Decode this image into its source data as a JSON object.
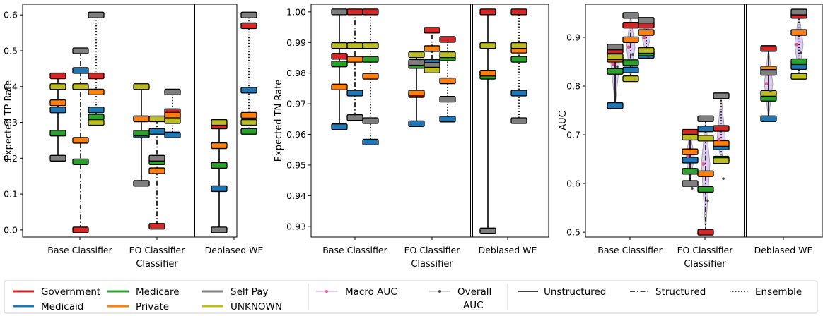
{
  "chart_data": [
    {
      "type": "box-marker",
      "ylabel": "Expected TP Rate",
      "xlabel": "Classifier",
      "yticks": [
        "0.0",
        "0.1",
        "0.2",
        "0.3",
        "0.4",
        "0.5",
        "0.6"
      ],
      "ylim": [
        -0.02,
        0.63
      ],
      "categories": [
        "Base Classifier",
        "EO Classifier",
        "Debiased WE"
      ],
      "groups": [
        {
          "name": "Government",
          "color": "#d62728",
          "values": {
            "Base Classifier": {
              "Unstructured": 0.43,
              "Structured": 0.0,
              "Ensemble": 0.43
            },
            "EO Classifier": {
              "Unstructured": 0.31,
              "Structured": 0.01,
              "Ensemble": 0.33
            },
            "Debiased WE": {
              "Unstructured": 0.29,
              "Ensemble": 0.57
            }
          }
        },
        {
          "name": "Medicaid",
          "color": "#1f77b4",
          "values": {
            "Base Classifier": {
              "Unstructured": 0.335,
              "Structured": 0.445,
              "Ensemble": 0.335
            },
            "EO Classifier": {
              "Unstructured": 0.265,
              "Structured": 0.275,
              "Ensemble": 0.265
            },
            "Debiased WE": {
              "Unstructured": 0.115,
              "Ensemble": 0.39
            }
          }
        },
        {
          "name": "Medicare",
          "color": "#2ca02c",
          "values": {
            "Base Classifier": {
              "Unstructured": 0.27,
              "Structured": 0.19,
              "Ensemble": 0.315
            },
            "EO Classifier": {
              "Unstructured": 0.27,
              "Structured": 0.19,
              "Ensemble": 0.315
            },
            "Debiased WE": {
              "Unstructured": 0.18,
              "Ensemble": 0.275
            }
          }
        },
        {
          "name": "Private",
          "color": "#ff7f0e",
          "values": {
            "Base Classifier": {
              "Unstructured": 0.355,
              "Structured": 0.25,
              "Ensemble": 0.385
            },
            "EO Classifier": {
              "Unstructured": 0.31,
              "Structured": 0.165,
              "Ensemble": 0.32
            },
            "Debiased WE": {
              "Unstructured": 0.235,
              "Ensemble": 0.32
            }
          }
        },
        {
          "name": "Self Pay",
          "color": "#7f7f7f",
          "values": {
            "Base Classifier": {
              "Unstructured": 0.2,
              "Structured": 0.5,
              "Ensemble": 0.6
            },
            "EO Classifier": {
              "Unstructured": 0.13,
              "Structured": 0.2,
              "Ensemble": 0.385
            },
            "Debiased WE": {
              "Unstructured": 0.0,
              "Ensemble": 0.6
            }
          }
        },
        {
          "name": "UNKNOWN",
          "color": "#bcbd22",
          "values": {
            "Base Classifier": {
              "Unstructured": 0.4,
              "Structured": 0.4,
              "Ensemble": 0.3
            },
            "EO Classifier": {
              "Unstructured": 0.4,
              "Structured": 0.31,
              "Ensemble": 0.305
            },
            "Debiased WE": {
              "Unstructured": 0.3,
              "Ensemble": 0.3
            }
          }
        }
      ]
    },
    {
      "type": "box-marker",
      "ylabel": "Expected TN Rate",
      "xlabel": "Classifier",
      "yticks": [
        "0.93",
        "0.94",
        "0.95",
        "0.96",
        "0.97",
        "0.98",
        "0.99",
        "1.00"
      ],
      "ylim": [
        0.9265,
        1.0025
      ],
      "categories": [
        "Base Classifier",
        "EO Classifier",
        "Debiased WE"
      ],
      "groups": [
        {
          "name": "Government",
          "color": "#d62728",
          "values": {
            "Base Classifier": {
              "Unstructured": 0.9855,
              "Structured": 1.0,
              "Ensemble": 1.0
            },
            "EO Classifier": {
              "Unstructured": 0.973,
              "Structured": 0.994,
              "Ensemble": 0.991
            },
            "Debiased WE": {
              "Unstructured": 1.0,
              "Ensemble": 1.0
            }
          }
        },
        {
          "name": "Medicaid",
          "color": "#1f77b4",
          "values": {
            "Base Classifier": {
              "Unstructured": 0.9625,
              "Structured": 0.9735,
              "Ensemble": 0.9575
            },
            "EO Classifier": {
              "Unstructured": 0.9635,
              "Structured": 0.9835,
              "Ensemble": 0.965
            },
            "Debiased WE": {
              "Unstructured": 0.98,
              "Ensemble": 0.9735
            }
          }
        },
        {
          "name": "Medicare",
          "color": "#2ca02c",
          "values": {
            "Base Classifier": {
              "Unstructured": 0.983,
              "Structured": 0.989,
              "Ensemble": 0.9845
            },
            "EO Classifier": {
              "Unstructured": 0.9825,
              "Structured": 0.9825,
              "Ensemble": 0.985
            },
            "Debiased WE": {
              "Unstructured": 0.979,
              "Ensemble": 0.9845
            }
          }
        },
        {
          "name": "Private",
          "color": "#ff7f0e",
          "values": {
            "Base Classifier": {
              "Unstructured": 0.9755,
              "Structured": 0.9845,
              "Ensemble": 0.979
            },
            "EO Classifier": {
              "Unstructured": 0.9735,
              "Structured": 0.988,
              "Ensemble": 0.9775
            },
            "Debiased WE": {
              "Unstructured": 0.98,
              "Ensemble": 0.9875
            }
          }
        },
        {
          "name": "Self Pay",
          "color": "#7f7f7f",
          "values": {
            "Base Classifier": {
              "Unstructured": 1.0,
              "Structured": 0.9655,
              "Ensemble": 0.9645
            },
            "EO Classifier": {
              "Unstructured": 0.9835,
              "Structured": 0.9825,
              "Ensemble": 0.9715
            },
            "Debiased WE": {
              "Unstructured": 0.9285,
              "Ensemble": 0.9645
            }
          }
        },
        {
          "name": "UNKNOWN",
          "color": "#bcbd22",
          "values": {
            "Base Classifier": {
              "Unstructured": 0.989,
              "Structured": 0.989,
              "Ensemble": 0.989
            },
            "EO Classifier": {
              "Unstructured": 0.986,
              "Structured": 0.981,
              "Ensemble": 0.986
            },
            "Debiased WE": {
              "Unstructured": 0.989,
              "Ensemble": 0.989
            }
          }
        }
      ]
    },
    {
      "type": "box-marker",
      "ylabel": "AUC",
      "xlabel": "Classifier",
      "yticks": [
        "0.5",
        "0.6",
        "0.7",
        "0.8",
        "0.9"
      ],
      "ylim": [
        0.49,
        0.968
      ],
      "categories": [
        "Base Classifier",
        "EO Classifier",
        "Debiased WE"
      ],
      "groups": [
        {
          "name": "Government",
          "color": "#d62728",
          "values": {
            "Base Classifier": {
              "Unstructured": 0.873,
              "Structured": 0.925,
              "Ensemble": 0.925
            },
            "EO Classifier": {
              "Unstructured": 0.705,
              "Structured": 0.5,
              "Ensemble": 0.713
            },
            "Debiased WE": {
              "Unstructured": 0.877,
              "Ensemble": 0.945
            }
          }
        },
        {
          "name": "Medicaid",
          "color": "#1f77b4",
          "values": {
            "Base Classifier": {
              "Unstructured": 0.76,
              "Structured": 0.833,
              "Ensemble": 0.863
            },
            "EO Classifier": {
              "Unstructured": 0.648,
              "Structured": 0.712,
              "Ensemble": 0.675
            },
            "Debiased WE": {
              "Unstructured": 0.733,
              "Ensemble": 0.84
            }
          }
        },
        {
          "name": "Medicare",
          "color": "#2ca02c",
          "values": {
            "Base Classifier": {
              "Unstructured": 0.83,
              "Structured": 0.848,
              "Ensemble": 0.868
            },
            "EO Classifier": {
              "Unstructured": 0.625,
              "Structured": 0.588,
              "Ensemble": 0.65
            },
            "Debiased WE": {
              "Unstructured": 0.775,
              "Ensemble": 0.85
            }
          }
        },
        {
          "name": "Private",
          "color": "#ff7f0e",
          "values": {
            "Base Classifier": {
              "Unstructured": 0.855,
              "Structured": 0.895,
              "Ensemble": 0.91
            },
            "EO Classifier": {
              "Unstructured": 0.665,
              "Structured": 0.62,
              "Ensemble": 0.682
            },
            "Debiased WE": {
              "Unstructured": 0.835,
              "Ensemble": 0.91
            }
          }
        },
        {
          "name": "Self Pay",
          "color": "#7f7f7f",
          "values": {
            "Base Classifier": {
              "Unstructured": 0.88,
              "Structured": 0.945,
              "Ensemble": 0.935
            },
            "EO Classifier": {
              "Unstructured": 0.6,
              "Structured": 0.733,
              "Ensemble": 0.78
            },
            "Debiased WE": {
              "Unstructured": 0.828,
              "Ensemble": 0.952
            }
          }
        },
        {
          "name": "UNKNOWN",
          "color": "#bcbd22",
          "values": {
            "Base Classifier": {
              "Unstructured": 0.86,
              "Structured": 0.815,
              "Ensemble": 0.873
            },
            "EO Classifier": {
              "Unstructured": 0.695,
              "Structured": 0.693,
              "Ensemble": 0.647
            },
            "Debiased WE": {
              "Unstructured": 0.785,
              "Ensemble": 0.82
            }
          }
        }
      ],
      "macro_auc": {
        "Base Classifier": {
          "Unstructured": 0.845,
          "Structured": 0.88,
          "Ensemble": 0.9
        },
        "EO Classifier": {
          "Unstructured": 0.655,
          "Structured": 0.64,
          "Ensemble": 0.69
        },
        "Debiased WE": {
          "Unstructured": 0.805,
          "Ensemble": 0.885
        }
      },
      "overall_auc": {
        "Base Classifier": {
          "Unstructured": 0.84,
          "Structured": 0.865,
          "Ensemble": 0.86
        },
        "EO Classifier": {
          "Unstructured": 0.59,
          "Structured": 0.565,
          "Ensemble": 0.61
        },
        "Debiased WE": {
          "Unstructured": 0.79,
          "Ensemble": 0.868
        }
      }
    }
  ],
  "legend": {
    "groups": [
      "Government",
      "Medicaid",
      "Medicare",
      "Private",
      "Self Pay",
      "UNKNOWN"
    ],
    "group_colors": [
      "#d62728",
      "#1f77b4",
      "#2ca02c",
      "#ff7f0e",
      "#7f7f7f",
      "#bcbd22"
    ],
    "markers": [
      "Macro AUC",
      "Overall AUC"
    ],
    "linestyles": [
      "Unstructured",
      "Structured",
      "Ensemble"
    ]
  }
}
